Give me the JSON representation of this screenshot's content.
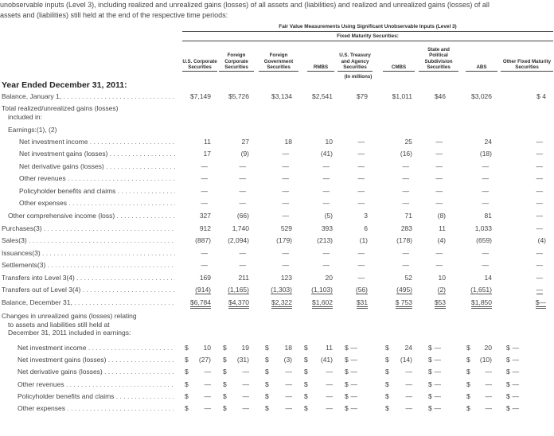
{
  "intro": {
    "line1": "unobservable inputs (Level 3), including realized and unrealized gains (losses) of all assets and (liabilities) and realized and unrealized gains (losses) of all",
    "line2": "assets and (liabilities) still held at the end of the respective time periods:"
  },
  "header": {
    "super": "Fair Value Measurements Using Significant Unobservable Inputs (Level 3)",
    "sub": "Fixed Maturity Securities:",
    "note": "(In millions)",
    "columns": [
      "U.S. Corporate Securities",
      "Foreign Corporate Securities",
      "Foreign Government Securities",
      "RMBS",
      "U.S. Treasury and Agency Securities",
      "CMBS",
      "State and Political Subdivision Securities",
      "ABS",
      "Other Fixed Maturity Securities"
    ]
  },
  "year_title": "Year Ended December 31, 2011:",
  "rows": [
    {
      "label": "Balance, January 1,",
      "values": [
        "$7,149",
        "$5,726",
        "$3,134",
        "$2,541",
        "$79",
        "$1,011",
        "$46",
        "$3,026",
        "$ 4"
      ]
    },
    {
      "label": "Total realized/unrealized gains (losses)",
      "values": []
    },
    {
      "label": "included in:",
      "values": []
    },
    {
      "label": "Earnings:(1), (2)",
      "values": []
    },
    {
      "label": "Net investment income",
      "values": [
        "11",
        "27",
        "18",
        "10",
        "—",
        "25",
        "—",
        "24",
        "—"
      ]
    },
    {
      "label": "Net investment gains (losses)",
      "values": [
        "17",
        "(9)",
        "—",
        "(41)",
        "—",
        "(16)",
        "—",
        "(18)",
        "—"
      ]
    },
    {
      "label": "Net derivative gains (losses)",
      "values": [
        "—",
        "—",
        "—",
        "—",
        "—",
        "—",
        "—",
        "—",
        "—"
      ]
    },
    {
      "label": "Other revenues",
      "values": [
        "—",
        "—",
        "—",
        "—",
        "—",
        "—",
        "—",
        "—",
        "—"
      ]
    },
    {
      "label": "Policyholder benefits and claims",
      "values": [
        "—",
        "—",
        "—",
        "—",
        "—",
        "—",
        "—",
        "—",
        "—"
      ]
    },
    {
      "label": "Other expenses",
      "values": [
        "—",
        "—",
        "—",
        "—",
        "—",
        "—",
        "—",
        "—",
        "—"
      ]
    },
    {
      "label": "Other comprehensive income (loss)",
      "values": [
        "327",
        "(66)",
        "—",
        "(5)",
        "3",
        "71",
        "(8)",
        "81",
        "—"
      ]
    },
    {
      "label": "Purchases(3)",
      "values": [
        "912",
        "1,740",
        "529",
        "393",
        "6",
        "283",
        "11",
        "1,033",
        "—"
      ]
    },
    {
      "label": "Sales(3)",
      "values": [
        "(887)",
        "(2,094)",
        "(179)",
        "(213)",
        "(1)",
        "(178)",
        "(4)",
        "(659)",
        "(4)"
      ]
    },
    {
      "label": "Issuances(3)",
      "values": [
        "—",
        "—",
        "—",
        "—",
        "—",
        "—",
        "—",
        "—",
        "—"
      ]
    },
    {
      "label": "Settlements(3)",
      "values": [
        "—",
        "—",
        "—",
        "—",
        "—",
        "—",
        "—",
        "—",
        "—"
      ]
    },
    {
      "label": "Transfers into Level 3(4)",
      "values": [
        "169",
        "211",
        "123",
        "20",
        "—",
        "52",
        "10",
        "14",
        "—"
      ]
    },
    {
      "label": "Transfers out of Level 3(4)",
      "values": [
        "(914)",
        "(1,165)",
        "(1,303)",
        "(1,103)",
        "(56)",
        "(495)",
        "(2)",
        "(1,651)",
        "—"
      ]
    },
    {
      "label": "Balance, December 31,",
      "values": [
        "$6,784",
        "$4,370",
        "$2,322",
        "$1,602",
        "$31",
        "$ 753",
        "$53",
        "$1,850",
        "$—"
      ]
    }
  ],
  "changes": {
    "title_line1": "Changes in unrealized gains (losses) relating",
    "title_line2": "to assets and liabilities still held at",
    "title_line3": "December 31, 2011 included in earnings:",
    "rows": [
      {
        "label": "Net investment income",
        "values": [
          "10",
          "19",
          "18",
          "11",
          "—",
          "24",
          "—",
          "20",
          "—"
        ]
      },
      {
        "label": "Net investment gains (losses)",
        "values": [
          "(27)",
          "(31)",
          "(3)",
          "(41)",
          "—",
          "(14)",
          "—",
          "(10)",
          "—"
        ]
      },
      {
        "label": "Net derivative gains (losses)",
        "values": [
          "—",
          "—",
          "—",
          "—",
          "—",
          "—",
          "—",
          "—",
          "—"
        ]
      },
      {
        "label": "Other revenues",
        "values": [
          "—",
          "—",
          "—",
          "—",
          "—",
          "—",
          "—",
          "—",
          "—"
        ]
      },
      {
        "label": "Policyholder benefits and claims",
        "values": [
          "—",
          "—",
          "—",
          "—",
          "—",
          "—",
          "—",
          "—",
          "—"
        ]
      },
      {
        "label": "Other expenses",
        "values": [
          "—",
          "—",
          "—",
          "—",
          "—",
          "—",
          "—",
          "—",
          "—"
        ]
      }
    ]
  },
  "dollar_sign": "$"
}
